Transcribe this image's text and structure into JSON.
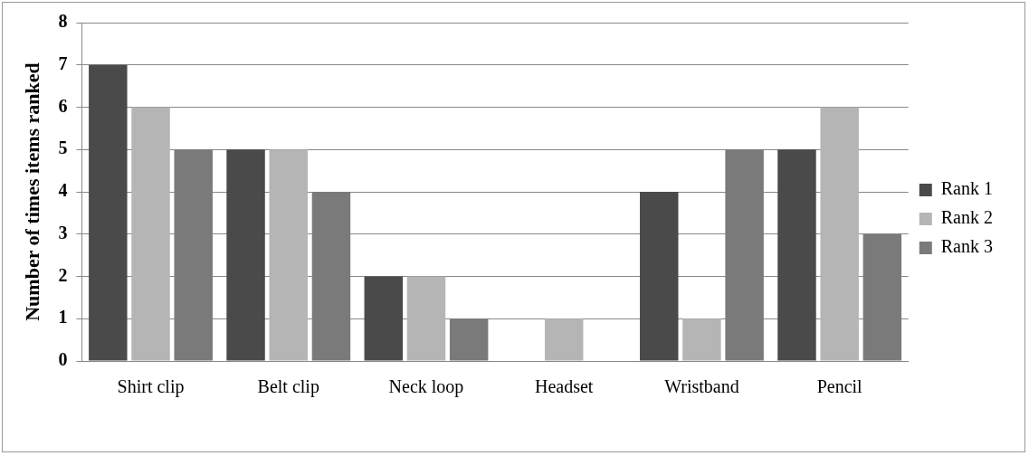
{
  "chart_data": {
    "type": "bar",
    "ylabel": "Number of times items ranked",
    "categories": [
      "Shirt clip",
      "Belt clip",
      "Neck loop",
      "Headset",
      "Wristband",
      "Pencil"
    ],
    "series": [
      {
        "name": "Rank 1",
        "color": "#4a4a4a",
        "values": [
          7,
          5,
          2,
          0,
          4,
          5
        ]
      },
      {
        "name": "Rank 2",
        "color": "#b5b5b5",
        "values": [
          6,
          5,
          2,
          1,
          1,
          6
        ]
      },
      {
        "name": "Rank 3",
        "color": "#7a7a7a",
        "values": [
          5,
          4,
          1,
          0,
          5,
          3
        ]
      }
    ],
    "ylim": [
      0,
      8
    ],
    "yticks": [
      0,
      1,
      2,
      3,
      4,
      5,
      6,
      7,
      8
    ],
    "grid": "y",
    "legend": "right"
  }
}
